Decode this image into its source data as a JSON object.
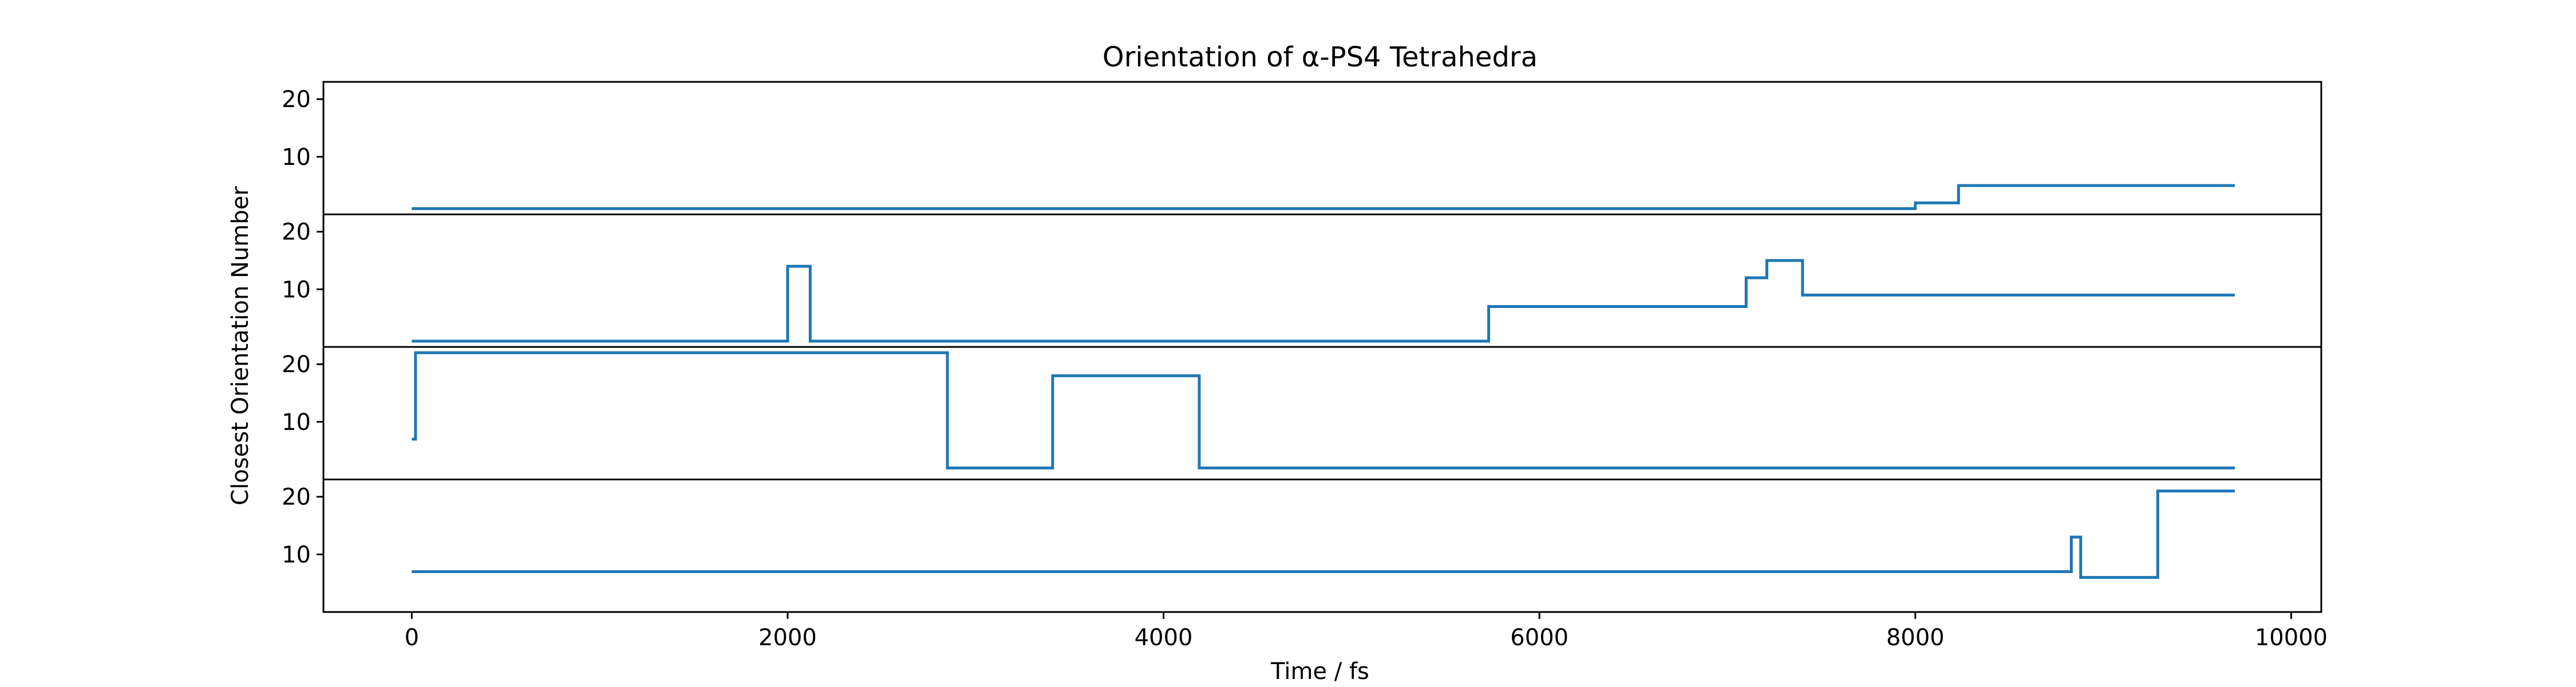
{
  "chart_data": {
    "type": "line",
    "step": "post",
    "title": "Orientation of α-PS4 Tetrahedra",
    "xlabel": "Time / fs",
    "ylabel": "Closest Orientation Number",
    "xlim": [
      -470,
      10160
    ],
    "ylim": [
      0,
      23
    ],
    "xticks": [
      0,
      2000,
      4000,
      6000,
      8000,
      10000
    ],
    "xtick_labels": [
      "0",
      "2000",
      "4000",
      "6000",
      "8000",
      "10000"
    ],
    "yticks": [
      10,
      20
    ],
    "ytick_labels": [
      "10",
      "20"
    ],
    "grid": false,
    "legend": "none",
    "line_color": "#1f77b4",
    "series": [
      {
        "x": [
          0,
          8000,
          8230,
          9700
        ],
        "y": [
          1,
          2,
          5,
          5
        ]
      },
      {
        "x": [
          0,
          2000,
          2120,
          5730,
          7100,
          7210,
          7400,
          9700
        ],
        "y": [
          1,
          14,
          1,
          7,
          12,
          15,
          9,
          9
        ]
      },
      {
        "x": [
          0,
          20,
          2850,
          3410,
          4190,
          9700
        ],
        "y": [
          7,
          22,
          2,
          18,
          2,
          2
        ]
      },
      {
        "x": [
          0,
          8830,
          8880,
          9290,
          9700
        ],
        "y": [
          7,
          13,
          6,
          21,
          21
        ]
      }
    ]
  }
}
